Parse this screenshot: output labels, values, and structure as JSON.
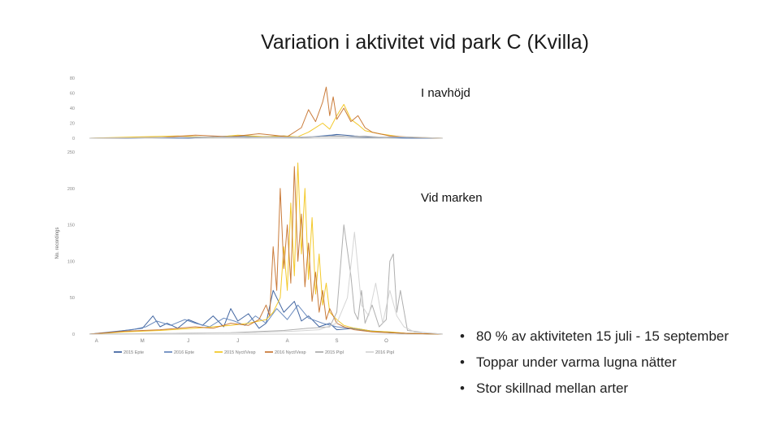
{
  "slide": {
    "title": "Variation i aktivitet vid park C (Kvilla)",
    "bullets": [
      "80 % av aktiviteten 15 juli - 15 september",
      "Toppar under varma lugna nätter",
      "Stor skillnad mellan arter"
    ]
  },
  "chart_data": [
    {
      "type": "line",
      "title": "I navhöjd",
      "ylim": [
        0,
        80
      ],
      "yticks": [
        0,
        20,
        40,
        60,
        80
      ],
      "ylabel": "",
      "xlabel": "",
      "x_range": [
        0,
        100
      ],
      "series": [
        {
          "name": "2015 Epte",
          "color": "#2e5597",
          "x": [
            0,
            10,
            20,
            28,
            35,
            45,
            55,
            60,
            65,
            70,
            75,
            80,
            85,
            92,
            100
          ],
          "y": [
            0,
            0,
            1,
            0,
            2,
            1,
            3,
            1,
            2,
            5,
            3,
            2,
            1,
            0,
            0
          ]
        },
        {
          "name": "2016 Epte",
          "color": "#5b7fb8",
          "x": [
            0,
            12,
            25,
            33,
            40,
            50,
            57,
            63,
            68,
            73,
            78,
            84,
            90,
            100
          ],
          "y": [
            0,
            1,
            0,
            1,
            3,
            2,
            1,
            2,
            4,
            2,
            1,
            1,
            0,
            0
          ]
        },
        {
          "name": "2015 Nyct/Vesp",
          "color": "#f2c314",
          "x": [
            0,
            15,
            25,
            35,
            42,
            50,
            55,
            59,
            62,
            66,
            68,
            70,
            72,
            74,
            76,
            78,
            82,
            88,
            100
          ],
          "y": [
            0,
            2,
            3,
            1,
            4,
            2,
            3,
            2,
            8,
            20,
            12,
            30,
            45,
            25,
            18,
            10,
            6,
            2,
            0
          ]
        },
        {
          "name": "2016 Nyct/Vesp",
          "color": "#c46e26",
          "x": [
            0,
            20,
            30,
            40,
            48,
            52,
            56,
            60,
            62,
            64,
            66,
            67,
            68,
            69,
            70,
            72,
            74,
            76,
            78,
            80,
            85,
            92,
            100
          ],
          "y": [
            0,
            1,
            4,
            2,
            6,
            4,
            2,
            14,
            38,
            22,
            48,
            68,
            30,
            55,
            25,
            40,
            22,
            30,
            14,
            8,
            3,
            1,
            0
          ]
        },
        {
          "name": "2015 Pipl",
          "color": "#a6a6a6",
          "x": [
            0,
            20,
            40,
            60,
            70,
            75,
            80,
            86,
            92,
            100
          ],
          "y": [
            0,
            1,
            2,
            1,
            3,
            2,
            1,
            2,
            1,
            0
          ]
        },
        {
          "name": "2016 Pipl",
          "color": "#c8c8c8",
          "x": [
            0,
            25,
            45,
            62,
            72,
            78,
            84,
            90,
            95,
            100
          ],
          "y": [
            0,
            1,
            1,
            2,
            2,
            3,
            1,
            2,
            1,
            0
          ]
        }
      ]
    },
    {
      "type": "line",
      "title": "Vid marken",
      "ylim": [
        0,
        250
      ],
      "yticks": [
        0,
        50,
        100,
        150,
        200,
        250
      ],
      "ylabel": "No. recordings",
      "xlabel": "",
      "x_range": [
        0,
        100
      ],
      "xtick_labels": [
        {
          "x": 2,
          "label": "A"
        },
        {
          "x": 15,
          "label": "M"
        },
        {
          "x": 28,
          "label": "J"
        },
        {
          "x": 42,
          "label": "J"
        },
        {
          "x": 56,
          "label": "A"
        },
        {
          "x": 70,
          "label": "S"
        },
        {
          "x": 84,
          "label": "O"
        }
      ],
      "series": [
        {
          "name": "2015 Epte",
          "color": "#2e5597",
          "x": [
            0,
            5,
            10,
            15,
            18,
            20,
            22,
            25,
            28,
            32,
            35,
            38,
            40,
            42,
            45,
            48,
            50,
            52,
            55,
            58,
            60,
            62,
            65,
            68,
            70,
            75,
            80,
            85,
            90,
            100
          ],
          "y": [
            0,
            2,
            5,
            8,
            25,
            10,
            15,
            8,
            20,
            12,
            25,
            10,
            35,
            18,
            28,
            8,
            15,
            60,
            30,
            45,
            18,
            25,
            10,
            15,
            6,
            8,
            4,
            2,
            1,
            0
          ]
        },
        {
          "name": "2016 Epte",
          "color": "#5b7fb8",
          "x": [
            0,
            6,
            12,
            16,
            19,
            23,
            27,
            30,
            34,
            38,
            41,
            44,
            47,
            50,
            53,
            56,
            59,
            62,
            66,
            70,
            74,
            78,
            84,
            90,
            100
          ],
          "y": [
            0,
            3,
            6,
            10,
            18,
            12,
            20,
            15,
            10,
            22,
            18,
            12,
            25,
            15,
            35,
            20,
            40,
            22,
            15,
            10,
            8,
            5,
            3,
            1,
            0
          ]
        },
        {
          "name": "2015 Nyct/Vesp",
          "color": "#f2c314",
          "x": [
            0,
            10,
            20,
            30,
            40,
            45,
            50,
            52,
            54,
            55,
            56,
            57,
            58,
            59,
            60,
            61,
            62,
            63,
            64,
            65,
            66,
            67,
            68,
            70,
            72,
            75,
            80,
            85,
            90,
            100
          ],
          "y": [
            0,
            3,
            5,
            8,
            12,
            15,
            20,
            30,
            50,
            120,
            60,
            180,
            80,
            235,
            110,
            200,
            75,
            160,
            55,
            110,
            40,
            70,
            30,
            20,
            12,
            8,
            4,
            3,
            1,
            0
          ]
        },
        {
          "name": "2016 Nyct/Vesp",
          "color": "#c46e26",
          "x": [
            0,
            10,
            20,
            30,
            35,
            40,
            45,
            48,
            50,
            51,
            52,
            53,
            54,
            55,
            56,
            57,
            58,
            59,
            60,
            61,
            62,
            63,
            64,
            65,
            66,
            67,
            68,
            70,
            72,
            75,
            80,
            85,
            90,
            100
          ],
          "y": [
            0,
            4,
            6,
            10,
            8,
            15,
            12,
            20,
            40,
            25,
            120,
            60,
            200,
            90,
            150,
            70,
            230,
            100,
            165,
            65,
            125,
            45,
            85,
            30,
            60,
            20,
            35,
            15,
            10,
            6,
            3,
            2,
            1,
            0
          ]
        },
        {
          "name": "2015 Pipl",
          "color": "#a6a6a6",
          "x": [
            0,
            40,
            55,
            62,
            68,
            70,
            72,
            74,
            75,
            76,
            77,
            78,
            80,
            82,
            84,
            85,
            86,
            87,
            88,
            90,
            95,
            100
          ],
          "y": [
            0,
            2,
            5,
            8,
            10,
            30,
            150,
            80,
            30,
            20,
            60,
            15,
            40,
            10,
            20,
            100,
            110,
            30,
            60,
            5,
            2,
            0
          ]
        },
        {
          "name": "2016 Pipl",
          "color": "#d0d0d0",
          "x": [
            0,
            45,
            58,
            65,
            70,
            73,
            75,
            77,
            79,
            81,
            83,
            85,
            87,
            89,
            92,
            100
          ],
          "y": [
            0,
            2,
            4,
            6,
            15,
            50,
            140,
            40,
            25,
            70,
            15,
            60,
            25,
            10,
            3,
            0
          ]
        }
      ]
    }
  ]
}
